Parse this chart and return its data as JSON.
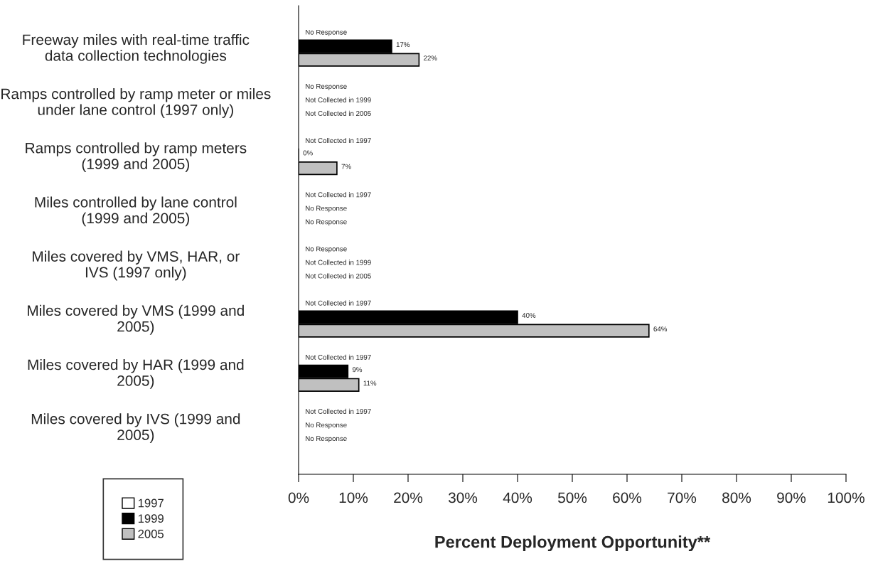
{
  "chart_data": {
    "type": "bar",
    "orientation": "horizontal",
    "xlabel": "Percent Deployment Opportunity**",
    "categories": [
      "Freeway miles with real-time traffic\ndata collection technologies",
      "Ramps controlled by ramp meter or miles\nunder lane control (1997 only)",
      "Ramps controlled by ramp meters\n(1999 and 2005)",
      "Miles controlled by lane control\n(1999 and 2005)",
      "Miles covered by VMS, HAR, or\nIVS (1997 only)",
      "Miles covered by VMS (1999 and\n2005)",
      "Miles covered by HAR (1999 and\n2005)",
      "Miles covered by IVS (1999 and\n2005)"
    ],
    "series": [
      {
        "name": "1997",
        "color": "#ffffff",
        "values": [
          null,
          null,
          null,
          null,
          null,
          null,
          null,
          null
        ],
        "value_labels": [
          "No Response",
          "No Response",
          "Not Collected in 1997",
          "Not Collected in 1997",
          "No Response",
          "Not Collected in 1997",
          "Not Collected in 1997",
          "Not Collected in 1997"
        ]
      },
      {
        "name": "1999",
        "color": "#000000",
        "values": [
          17,
          null,
          0,
          null,
          null,
          40,
          9,
          null
        ],
        "value_labels": [
          "17%",
          "Not Collected in 1999",
          "0%",
          "No Response",
          "Not Collected in 1999",
          "40%",
          "9%",
          "No Response"
        ]
      },
      {
        "name": "2005",
        "color": "#c0c0c0",
        "values": [
          22,
          null,
          7,
          null,
          null,
          64,
          11,
          null
        ],
        "value_labels": [
          "22%",
          "Not Collected in 2005",
          "7%",
          "No Response",
          "Not Collected in 2005",
          "64%",
          "11%",
          "No Response"
        ]
      }
    ],
    "xlim": [
      0,
      100
    ],
    "xticks": [
      {
        "value": 0,
        "label": "0%"
      },
      {
        "value": 10,
        "label": "10%"
      },
      {
        "value": 20,
        "label": "20%"
      },
      {
        "value": 30,
        "label": "30%"
      },
      {
        "value": 40,
        "label": "40%"
      },
      {
        "value": 50,
        "label": "50%"
      },
      {
        "value": 60,
        "label": "60%"
      },
      {
        "value": 70,
        "label": "70%"
      },
      {
        "value": 80,
        "label": "80%"
      },
      {
        "value": 90,
        "label": "90%"
      },
      {
        "value": 100,
        "label": "100%"
      }
    ],
    "grid": false,
    "legend": "bottom left"
  }
}
